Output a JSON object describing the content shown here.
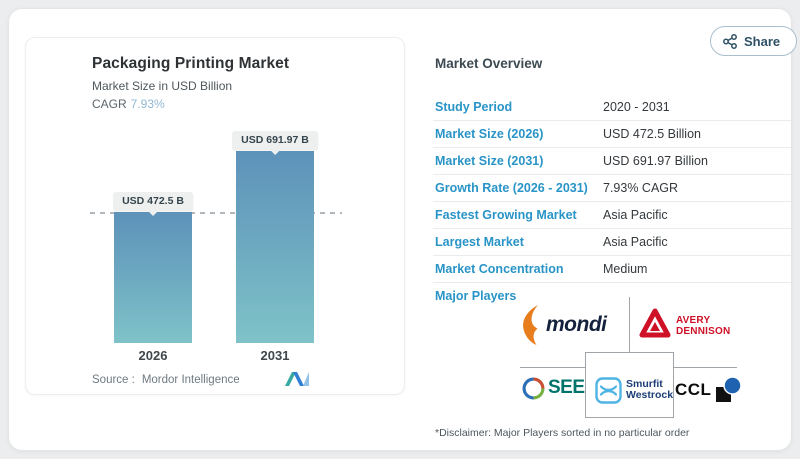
{
  "colors": {
    "accent_blue": "#2994c7",
    "bar_gradient_top": "#5e92ba",
    "bar_gradient_bottom": "#7fc3c8",
    "cagr_value_color": "#92b8d4",
    "mondi_orange": "#e87d1e",
    "mondi_navy": "#14213d",
    "avery_red": "#cf1127",
    "see_teal": "#00746b",
    "smurfit_blue": "#4fb3e4",
    "smurfit_navy": "#1c3f77",
    "ccl_blue": "#1f63b0"
  },
  "share_button": {
    "label": "Share"
  },
  "chart_panel": {
    "title": "Packaging Printing Market",
    "subtitle": "Market Size in USD Billion",
    "cagr_label": "CAGR",
    "cagr_value": "7.93%",
    "source_label": "Source :",
    "source_name": "Mordor Intelligence"
  },
  "chart_data": {
    "type": "bar",
    "title": "Packaging Printing Market",
    "ylabel": "Market Size in USD Billion",
    "categories": [
      "2026",
      "2031"
    ],
    "values": [
      472.5,
      691.97
    ],
    "bar_labels": [
      "USD 472.5 B",
      "USD 691.97 B"
    ],
    "cagr_percent": 7.93,
    "reference_line_value": 472.5,
    "grid": false,
    "legend": false
  },
  "overview": {
    "heading": "Market Overview",
    "rows": [
      {
        "label": "Study Period",
        "value": "2020 - 2031"
      },
      {
        "label": "Market Size (2026)",
        "value": "USD 472.5 Billion"
      },
      {
        "label": "Market Size (2031)",
        "value": "USD 691.97 Billion"
      },
      {
        "label": "Growth Rate (2026 - 2031)",
        "value": "7.93% CAGR"
      },
      {
        "label": "Fastest Growing Market",
        "value": "Asia Pacific"
      },
      {
        "label": "Largest Market",
        "value": "Asia Pacific"
      },
      {
        "label": "Market Concentration",
        "value": "Medium"
      }
    ],
    "major_players_label": "Major Players",
    "players": [
      {
        "name": "Mondi",
        "wordmark": "mondi"
      },
      {
        "name": "Avery Dennison",
        "line1": "AVERY",
        "line2": "DENNISON"
      },
      {
        "name": "SEE",
        "wordmark": "SEE"
      },
      {
        "name": "Smurfit Westrock",
        "line1": "Smurfit",
        "line2": "Westrock"
      },
      {
        "name": "CCL",
        "wordmark": "CCL"
      }
    ],
    "disclaimer": "*Disclaimer: Major Players sorted in no particular order"
  }
}
